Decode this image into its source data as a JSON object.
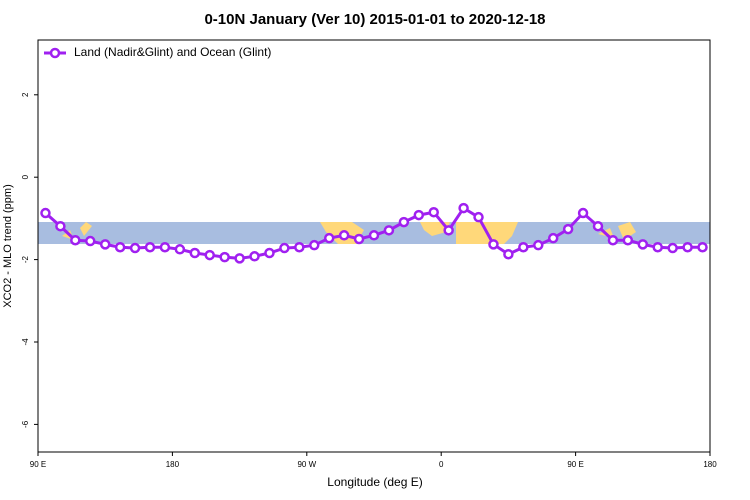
{
  "chart_data": {
    "type": "line",
    "title": "0-10N January (Ver 10)   2015-01-01 to 2020-12-18",
    "x_label": "Longitude (deg E)",
    "y_label": "XCO2 - MLO trend (ppm)",
    "x": [
      95,
      105,
      115,
      125,
      135,
      145,
      155,
      165,
      175,
      185,
      195,
      205,
      215,
      225,
      235,
      245,
      255,
      265,
      275,
      285,
      295,
      305,
      315,
      325,
      335,
      345,
      355,
      365,
      375,
      385,
      395,
      405,
      415,
      425,
      435,
      445,
      455,
      465,
      475,
      485,
      495,
      505,
      515,
      525,
      535
    ],
    "series": [
      {
        "name": "Land (Nadir&Glint) and Ocean (Glint)",
        "color": "#a020f0",
        "values": [
          -0.87,
          -1.19,
          -1.53,
          -1.55,
          -1.63,
          -1.7,
          -1.72,
          -1.7,
          -1.7,
          -1.75,
          -1.84,
          -1.89,
          -1.94,
          -1.97,
          -1.92,
          -1.84,
          -1.72,
          -1.7,
          -1.65,
          -1.48,
          -1.41,
          -1.5,
          -1.41,
          -1.29,
          -1.09,
          -0.92,
          -0.85,
          -1.29,
          -0.75,
          -0.97,
          -1.63,
          -1.87,
          -1.7,
          -1.65,
          -1.48,
          -1.26,
          -0.87,
          -1.19,
          -1.53,
          -1.53,
          -1.63,
          -1.7,
          -1.72,
          -1.7,
          -1.7
        ]
      }
    ],
    "xlim": [
      90,
      540
    ],
    "ylim": [
      -6.67,
      3.33
    ],
    "xticks": [
      {
        "value": 90,
        "label": "90 E"
      },
      180,
      {
        "value": 270,
        "label": "90 W"
      },
      {
        "value": 360,
        "label": "0"
      },
      {
        "value": 450,
        "label": "90 E"
      },
      {
        "value": 540,
        "label": "180"
      }
    ],
    "yticks": [
      -6,
      -4,
      -2,
      0,
      2
    ],
    "legend": "top-left"
  }
}
